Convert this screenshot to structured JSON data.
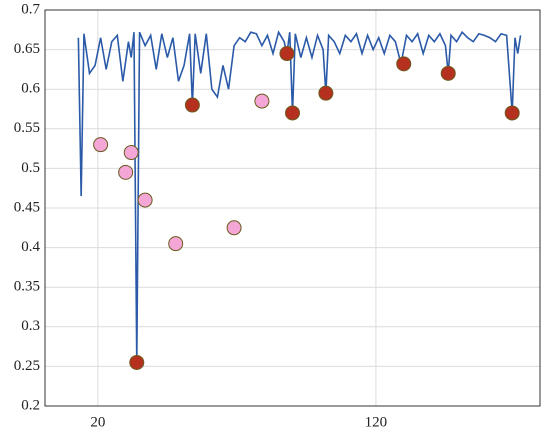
{
  "chart_data": {
    "type": "line",
    "xlim": [
      1,
      179
    ],
    "ylim": [
      0.2,
      0.7
    ],
    "xticks": [
      20,
      120
    ],
    "yticks": [
      0.2,
      0.25,
      0.3,
      0.35,
      0.4,
      0.45,
      0.5,
      0.55,
      0.6,
      0.65,
      0.7
    ],
    "grid": true,
    "x": [
      13,
      14,
      15,
      17,
      19,
      21,
      23,
      25,
      27,
      29,
      31,
      32,
      33,
      34,
      35,
      37,
      39,
      41,
      43,
      45,
      47,
      49,
      51,
      53,
      54,
      55,
      57,
      59,
      61,
      63,
      65,
      67,
      69,
      71,
      73,
      75,
      77,
      79,
      81,
      83,
      85,
      87,
      88,
      89,
      90,
      91,
      93,
      95,
      97,
      99,
      101,
      102,
      103,
      105,
      107,
      109,
      111,
      113,
      115,
      117,
      119,
      121,
      123,
      125,
      127,
      129,
      131,
      133,
      135,
      137,
      139,
      141,
      143,
      145,
      146,
      147,
      149,
      151,
      153,
      155,
      157,
      159,
      161,
      163,
      165,
      167,
      169,
      170,
      171,
      172
    ],
    "series": [
      {
        "type": "line",
        "color": "#2b5aa8",
        "values": [
          0.665,
          0.465,
          0.67,
          0.62,
          0.63,
          0.665,
          0.625,
          0.66,
          0.668,
          0.61,
          0.66,
          0.64,
          0.672,
          0.255,
          0.672,
          0.655,
          0.668,
          0.625,
          0.67,
          0.64,
          0.665,
          0.61,
          0.63,
          0.67,
          0.58,
          0.67,
          0.62,
          0.67,
          0.6,
          0.59,
          0.63,
          0.6,
          0.655,
          0.665,
          0.66,
          0.672,
          0.67,
          0.655,
          0.668,
          0.645,
          0.672,
          0.66,
          0.645,
          0.672,
          0.57,
          0.67,
          0.64,
          0.665,
          0.64,
          0.668,
          0.65,
          0.595,
          0.668,
          0.66,
          0.645,
          0.668,
          0.66,
          0.67,
          0.645,
          0.668,
          0.65,
          0.665,
          0.645,
          0.668,
          0.66,
          0.632,
          0.668,
          0.66,
          0.67,
          0.645,
          0.668,
          0.66,
          0.67,
          0.655,
          0.62,
          0.668,
          0.66,
          0.672,
          0.665,
          0.66,
          0.67,
          0.668,
          0.665,
          0.66,
          0.67,
          0.668,
          0.57,
          0.665,
          0.645,
          0.668
        ]
      },
      {
        "type": "scatter",
        "color": "#f4a6d7",
        "x": [
          21,
          30,
          32,
          37,
          48,
          69,
          79
        ],
        "values": [
          0.53,
          0.495,
          0.52,
          0.46,
          0.405,
          0.425,
          0.585
        ]
      },
      {
        "type": "scatter",
        "color": "#b5301e",
        "x": [
          34,
          54,
          88,
          90,
          102,
          130,
          146,
          169
        ],
        "values": [
          0.255,
          0.58,
          0.645,
          0.57,
          0.595,
          0.632,
          0.62,
          0.57
        ]
      }
    ]
  }
}
